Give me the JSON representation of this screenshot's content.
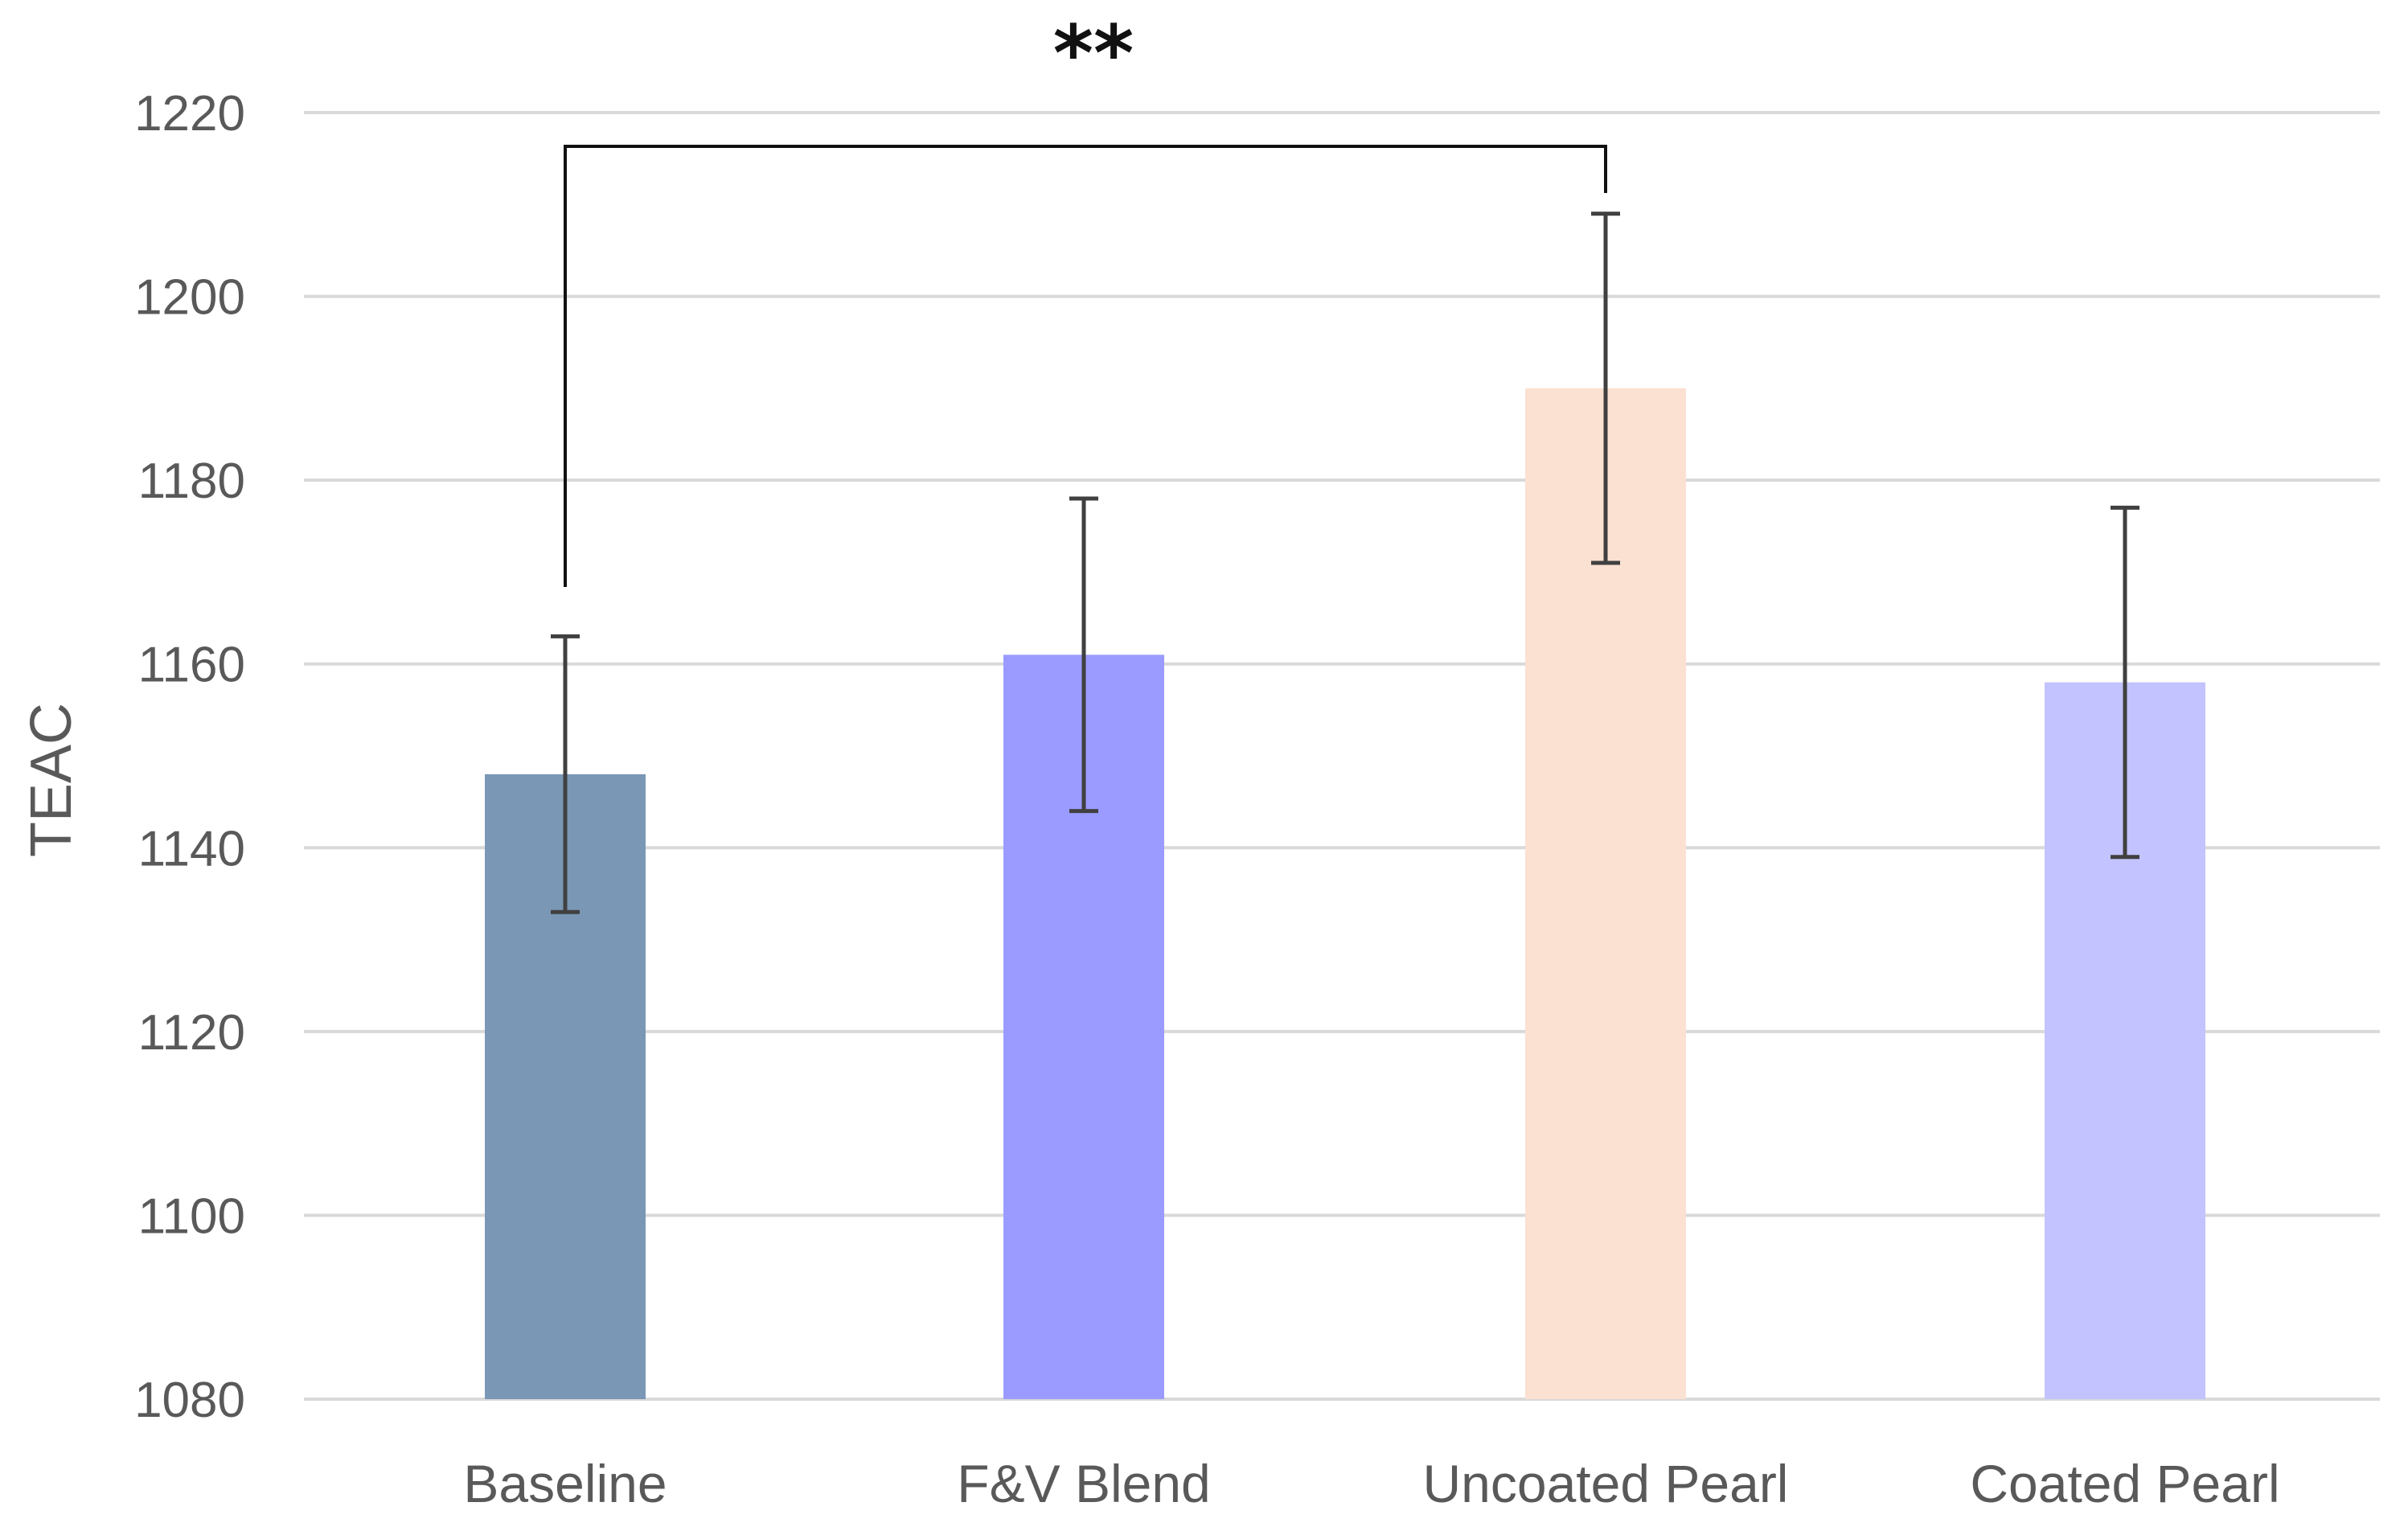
{
  "chart_data": {
    "type": "bar",
    "title": "",
    "xlabel": "",
    "ylabel": "TEAC",
    "ylim": [
      1080,
      1220
    ],
    "yticks": [
      1080,
      1100,
      1120,
      1140,
      1160,
      1180,
      1200,
      1220
    ],
    "grid": true,
    "categories": [
      "Baseline",
      "F&V Blend",
      "Uncoated Pearl",
      "Coated Pearl"
    ],
    "values": [
      1148,
      1161,
      1190,
      1158
    ],
    "error_low": [
      1133,
      1144,
      1171,
      1139
    ],
    "error_high": [
      1163,
      1178,
      1209,
      1177
    ],
    "colors": [
      "#7a97b5",
      "#9b9bff",
      "#fbe1d1",
      "#c3c3ff"
    ],
    "annotations": [
      {
        "type": "significance",
        "label": "**",
        "from": "Baseline",
        "to": "Uncoated Pearl"
      }
    ]
  }
}
